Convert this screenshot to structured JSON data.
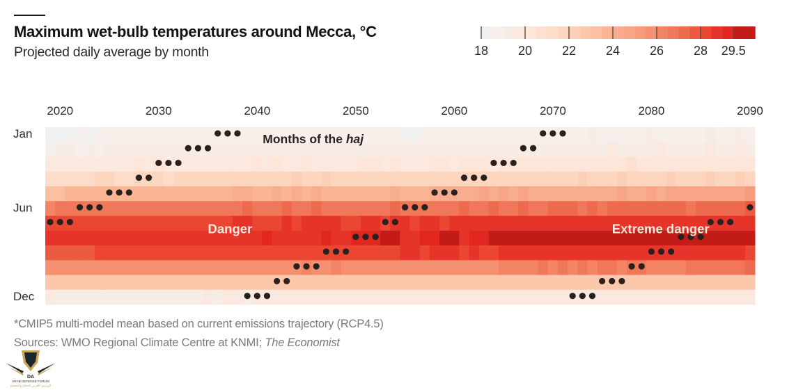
{
  "header": {
    "title": "Maximum wet-bulb temperatures around Mecca, °C",
    "subtitle": "Projected daily average by month"
  },
  "footer": {
    "note": "*CMIP5 multi-model mean based on current emissions trajectory (RCP4.5)",
    "sources_prefix": "Sources: WMO Regional Climate Centre at KNMI; ",
    "sources_italic": "The Economist"
  },
  "watermark": {
    "initials": "DA",
    "name": "ARAB DEFENSE FORUM",
    "arabic": "المنتدى العربي للدفاع والتسليح"
  },
  "chart_data": {
    "type": "heatmap",
    "title": "Maximum wet-bulb temperatures around Mecca, °C",
    "subtitle": "Projected daily average by month",
    "x_start_year": 2019,
    "x_end_year": 2090,
    "x_tick_labels": [
      "2020",
      "2030",
      "2040",
      "2050",
      "2060",
      "2070",
      "2080",
      "2090"
    ],
    "x_tick_years": [
      2020,
      2030,
      2040,
      2050,
      2060,
      2070,
      2080,
      2090
    ],
    "months": [
      "Jan",
      "Feb",
      "Mar",
      "Apr",
      "May",
      "Jun",
      "Jul",
      "Aug",
      "Sep",
      "Oct",
      "Nov",
      "Dec"
    ],
    "y_tick_labels": [
      {
        "month_index": 0,
        "label": "Jan"
      },
      {
        "month_index": 5,
        "label": "Jun"
      },
      {
        "month_index": 11,
        "label": "Dec"
      }
    ],
    "color_scale": {
      "min": 18,
      "max": 29.5,
      "step": 0.5,
      "tick_labels": [
        "18",
        "20",
        "22",
        "24",
        "26",
        "28",
        "29.5"
      ],
      "tick_values": [
        18,
        20,
        22,
        24,
        26,
        28,
        29.5
      ],
      "colors": [
        "#f0f0f0",
        "#f6efeb",
        "#f8ede6",
        "#fbe8de",
        "#fde5d8",
        "#fde0d0",
        "#fddcc9",
        "#fdd6c0",
        "#fcd0b6",
        "#fcc8ab",
        "#fbc0a0",
        "#fab594",
        "#f8ad8e",
        "#f8a486",
        "#f69b7c",
        "#f59070",
        "#f38565",
        "#f0775a",
        "#ee6a4e",
        "#ec5a42",
        "#ea4632",
        "#e6342a",
        "#e22620",
        "#c31b18"
      ]
    },
    "values": [
      [
        18,
        18,
        18,
        18.5,
        18,
        18.5,
        18.5,
        18.5,
        18.5,
        18.5,
        18.5,
        18.5,
        18.5,
        18.5,
        18.5,
        18.5,
        18.5,
        18.5,
        18.5,
        18.5,
        18.5,
        18.5,
        18.5,
        18.5,
        18.5,
        18.5,
        18.5,
        18.5,
        18.5,
        18.5,
        18.5,
        18.5,
        18.5,
        18.5,
        18.5,
        18.5,
        18,
        18,
        18.5,
        18.5,
        18.5,
        18.5,
        18.5,
        18.5,
        18.5,
        18.5,
        18.5,
        18.5,
        18.5,
        18.5,
        18.5,
        18.5,
        18.5,
        18.5,
        18.5,
        19,
        18.5,
        18.5,
        18.5,
        18.5,
        18.5,
        19,
        18.5,
        18.5,
        18.5,
        18.5,
        18.5,
        19,
        18.5,
        18.5,
        19,
        18.5
      ],
      [
        18.5,
        19,
        19,
        18.5,
        19,
        18.5,
        19,
        19,
        19,
        19,
        19,
        19,
        19,
        19,
        19,
        19,
        19,
        19,
        19,
        19,
        19,
        19,
        19,
        19,
        19,
        19,
        19,
        19,
        19,
        19,
        19,
        19,
        19,
        19,
        19,
        19,
        19,
        19,
        19,
        19,
        19,
        19,
        19,
        19,
        19,
        19,
        19,
        19,
        19,
        19,
        19,
        19,
        19,
        19,
        19,
        19,
        19,
        19.5,
        19,
        19,
        19,
        19,
        19.5,
        19,
        19,
        19,
        19,
        19.5,
        19,
        19,
        19.5,
        19
      ],
      [
        19.5,
        19.5,
        19.5,
        19.5,
        19.5,
        19.5,
        19.5,
        19.5,
        19.5,
        20,
        19.5,
        20,
        19.5,
        19.5,
        19.5,
        19.5,
        19.5,
        19.5,
        19.5,
        19.5,
        19.5,
        20,
        19.5,
        20,
        19.5,
        19.5,
        20,
        19.5,
        19.5,
        19.5,
        19.5,
        19.5,
        20,
        20,
        19.5,
        20,
        19.5,
        19.5,
        19.5,
        20,
        20,
        19.5,
        20,
        20,
        20,
        19.5,
        20,
        20,
        20,
        20,
        20,
        20,
        20,
        20,
        20,
        20,
        20,
        20,
        20,
        20.5,
        20,
        20,
        20,
        20,
        20,
        20,
        20,
        20,
        20,
        20,
        20,
        20
      ],
      [
        21,
        21,
        21,
        21,
        21,
        21.5,
        21.5,
        21,
        21,
        21.5,
        21.5,
        21.5,
        21,
        21.5,
        21.5,
        21.5,
        21.5,
        21.5,
        21.5,
        21.5,
        21.5,
        21.5,
        21.5,
        21.5,
        21.5,
        22,
        21.5,
        21.5,
        22,
        21.5,
        21.5,
        21.5,
        21.5,
        21.5,
        21.5,
        21.5,
        21.5,
        21.5,
        21.5,
        21.5,
        21.5,
        21.5,
        21.5,
        21.5,
        21.5,
        21.5,
        21.5,
        21.5,
        21.5,
        21.5,
        21.5,
        21.5,
        21.5,
        21.5,
        22,
        21.5,
        21.5,
        21.5,
        22,
        21.5,
        21.5,
        21.5,
        21.5,
        22,
        21.5,
        21.5,
        21.5,
        22,
        21.5,
        21.5,
        22,
        21.5
      ],
      [
        23,
        23,
        23.5,
        23.5,
        23.5,
        23.5,
        23.5,
        23.5,
        23.5,
        23.5,
        23.5,
        23.5,
        23.5,
        23.5,
        23.5,
        23.5,
        23.5,
        23.5,
        23.5,
        24,
        24,
        23.5,
        23.5,
        24,
        23.5,
        24,
        23.5,
        24,
        23.5,
        23.5,
        23.5,
        23.5,
        23.5,
        23.5,
        23.5,
        24,
        23.5,
        23.5,
        23.5,
        24,
        24,
        24,
        24,
        24,
        24.5,
        24,
        24.5,
        24,
        24.5,
        24,
        24,
        24,
        24,
        24,
        24,
        24,
        24,
        24,
        24.5,
        24,
        24,
        24.5,
        24,
        24.5,
        24.5,
        24.5,
        24.5,
        24.5,
        24.5,
        24.5,
        24.5,
        25
      ],
      [
        26,
        26.5,
        26.5,
        26.5,
        26.5,
        26.5,
        26.5,
        26.5,
        26.5,
        26.5,
        26.5,
        26.5,
        26.5,
        26.5,
        26.5,
        26.5,
        26.5,
        26.5,
        26.5,
        26.5,
        27,
        26.5,
        26.5,
        26.5,
        27,
        26.5,
        26.5,
        27,
        26.5,
        26.5,
        26.5,
        26.5,
        26.5,
        26.5,
        26.5,
        27,
        26.5,
        26.5,
        26.5,
        26.5,
        26.5,
        26.5,
        27,
        26.5,
        26.5,
        27,
        26.5,
        26.5,
        27,
        26.5,
        26.5,
        27,
        27,
        27,
        26.5,
        27,
        26.5,
        27,
        27,
        27,
        27,
        27,
        27,
        27,
        27,
        26.5,
        27,
        27,
        27,
        27,
        27,
        27.5
      ],
      [
        28,
        28,
        28,
        28,
        28,
        28,
        28,
        28,
        28,
        28,
        28,
        28,
        28,
        28,
        28,
        28,
        28,
        28,
        28,
        28.5,
        28.5,
        28,
        28,
        28,
        28.5,
        28,
        28.5,
        28.5,
        28.5,
        28.5,
        28,
        28,
        28.5,
        28.5,
        28,
        28.5,
        28.5,
        28,
        28.5,
        28.5,
        28,
        28.5,
        28.5,
        28.5,
        28.5,
        28.5,
        28.5,
        28.5,
        28.5,
        28.5,
        28.5,
        28.5,
        28.5,
        28.5,
        28.5,
        28.5,
        28.5,
        28.5,
        28.5,
        28.5,
        28.5,
        28.5,
        28.5,
        28.5,
        28.5,
        28.5,
        28.5,
        28.5,
        28.5,
        28.5,
        28.5,
        28.5
      ],
      [
        28.5,
        28.5,
        28.5,
        28.5,
        28.5,
        28.5,
        28.5,
        28.5,
        28.5,
        28.5,
        28.5,
        28.5,
        28.5,
        28.5,
        28.5,
        28.5,
        28.5,
        28.5,
        28.5,
        28.5,
        28.5,
        28.5,
        29,
        28.5,
        28.5,
        28.5,
        28.5,
        28.5,
        29,
        28.5,
        28.5,
        29,
        29,
        29,
        29.5,
        29.5,
        28.5,
        28.5,
        29,
        29,
        29.5,
        29.5,
        28.5,
        29,
        29,
        29.5,
        29.5,
        29.5,
        29.5,
        29.5,
        29.5,
        29.5,
        29.5,
        29.5,
        29.5,
        29.5,
        29.5,
        29.5,
        29.5,
        29.5,
        29.5,
        29.5,
        29.5,
        29.5,
        29.5,
        29.5,
        29.5,
        29.5,
        29.5,
        29.5,
        29.5,
        29.5
      ],
      [
        27.5,
        27.5,
        27.5,
        27.5,
        27.5,
        28,
        28,
        28,
        28,
        28,
        28,
        28,
        28,
        28,
        28,
        28,
        28,
        28,
        28,
        28,
        28,
        28,
        28,
        28,
        28,
        28,
        28,
        28,
        28,
        28,
        28,
        28,
        28,
        28,
        28,
        28,
        28.5,
        28.5,
        28,
        28.5,
        28.5,
        28.5,
        28,
        28.5,
        28,
        28,
        28.5,
        28.5,
        28.5,
        28.5,
        28.5,
        28.5,
        28.5,
        28.5,
        28.5,
        28.5,
        28.5,
        28.5,
        28.5,
        28.5,
        28.5,
        28.5,
        28.5,
        28.5,
        28.5,
        28.5,
        28.5,
        28.5,
        28.5,
        28.5,
        28.5,
        28
      ],
      [
        25.5,
        25.5,
        25.5,
        25.5,
        25.5,
        25.5,
        25.5,
        25.5,
        25.5,
        25.5,
        25.5,
        25.5,
        25.5,
        25.5,
        25.5,
        25.5,
        25.5,
        25.5,
        25.5,
        25.5,
        25.5,
        25.5,
        25.5,
        25.5,
        25.5,
        25.5,
        26,
        25.5,
        25.5,
        26,
        25.5,
        25.5,
        25.5,
        25.5,
        25.5,
        25.5,
        25.5,
        25.5,
        25.5,
        25.5,
        25.5,
        25.5,
        25.5,
        25.5,
        25.5,
        25.5,
        26,
        26,
        26,
        26,
        26.5,
        26,
        26.5,
        26,
        26.5,
        26,
        26.5,
        26.5,
        26,
        26.5,
        26.5,
        26,
        26,
        26,
        26,
        26.5,
        26.5,
        26.5,
        26.5,
        26.5,
        26.5,
        27
      ],
      [
        22.5,
        22.5,
        22.5,
        22.5,
        22.5,
        22.5,
        22.5,
        22.5,
        22.5,
        22.5,
        22.5,
        22.5,
        22.5,
        22.5,
        22.5,
        22.5,
        22.5,
        22.5,
        22.5,
        22.5,
        22.5,
        22.5,
        22.5,
        22.5,
        22.5,
        22.5,
        22.5,
        22.5,
        22.5,
        22.5,
        22.5,
        22.5,
        22.5,
        22.5,
        22.5,
        22.5,
        22.5,
        22.5,
        22.5,
        22.5,
        22.5,
        22.5,
        22.5,
        22.5,
        22.5,
        22.5,
        22.5,
        22.5,
        22.5,
        22.5,
        22.5,
        22.5,
        22.5,
        22.5,
        22.5,
        22.5,
        22.5,
        22.5,
        22.5,
        22.5,
        22.5,
        22.5,
        22.5,
        22.5,
        22.5,
        22.5,
        22.5,
        22.5,
        22.5,
        22.5,
        22.5,
        22.5
      ],
      [
        19.5,
        19,
        19,
        19,
        19,
        19,
        19,
        19,
        19,
        19,
        19,
        19,
        19,
        19,
        19,
        19,
        19.5,
        19,
        19.5,
        19.5,
        19,
        19.5,
        19.5,
        19.5,
        19.5,
        19.5,
        19.5,
        19.5,
        19.5,
        19.5,
        19.5,
        19.5,
        19.5,
        19.5,
        19.5,
        19.5,
        19.5,
        19.5,
        19.5,
        19.5,
        19.5,
        19.5,
        19.5,
        19.5,
        19.5,
        19.5,
        19.5,
        19.5,
        19.5,
        19.5,
        19.5,
        19.5,
        19.5,
        19.5,
        19.5,
        19.5,
        19.5,
        19.5,
        19.5,
        19.5,
        19.5,
        19.5,
        19.5,
        19.5,
        19.5,
        19.5,
        19.5,
        19.5,
        19.5,
        19.5,
        19.5,
        19.5
      ]
    ],
    "haj_markers": {
      "description": "Dots mark the months in which the haj falls each year",
      "points": [
        {
          "year": 2019,
          "month": "Jul"
        },
        {
          "year": 2020,
          "month": "Jul"
        },
        {
          "year": 2021,
          "month": "Jul"
        },
        {
          "year": 2022,
          "month": "Jun"
        },
        {
          "year": 2023,
          "month": "Jun"
        },
        {
          "year": 2024,
          "month": "Jun"
        },
        {
          "year": 2025,
          "month": "May"
        },
        {
          "year": 2026,
          "month": "May"
        },
        {
          "year": 2027,
          "month": "May"
        },
        {
          "year": 2028,
          "month": "Apr"
        },
        {
          "year": 2029,
          "month": "Apr"
        },
        {
          "year": 2030,
          "month": "Mar"
        },
        {
          "year": 2031,
          "month": "Mar"
        },
        {
          "year": 2032,
          "month": "Mar"
        },
        {
          "year": 2033,
          "month": "Feb"
        },
        {
          "year": 2034,
          "month": "Feb"
        },
        {
          "year": 2035,
          "month": "Feb"
        },
        {
          "year": 2036,
          "month": "Jan"
        },
        {
          "year": 2037,
          "month": "Jan"
        },
        {
          "year": 2038,
          "month": "Jan"
        },
        {
          "year": 2039,
          "month": "Dec"
        },
        {
          "year": 2040,
          "month": "Dec"
        },
        {
          "year": 2041,
          "month": "Dec"
        },
        {
          "year": 2042,
          "month": "Nov"
        },
        {
          "year": 2043,
          "month": "Nov"
        },
        {
          "year": 2044,
          "month": "Oct"
        },
        {
          "year": 2045,
          "month": "Oct"
        },
        {
          "year": 2046,
          "month": "Oct"
        },
        {
          "year": 2047,
          "month": "Sep"
        },
        {
          "year": 2048,
          "month": "Sep"
        },
        {
          "year": 2049,
          "month": "Sep"
        },
        {
          "year": 2050,
          "month": "Aug"
        },
        {
          "year": 2051,
          "month": "Aug"
        },
        {
          "year": 2052,
          "month": "Aug"
        },
        {
          "year": 2053,
          "month": "Jul"
        },
        {
          "year": 2054,
          "month": "Jul"
        },
        {
          "year": 2055,
          "month": "Jun"
        },
        {
          "year": 2056,
          "month": "Jun"
        },
        {
          "year": 2057,
          "month": "Jun"
        },
        {
          "year": 2058,
          "month": "May"
        },
        {
          "year": 2059,
          "month": "May"
        },
        {
          "year": 2060,
          "month": "May"
        },
        {
          "year": 2061,
          "month": "Apr"
        },
        {
          "year": 2062,
          "month": "Apr"
        },
        {
          "year": 2063,
          "month": "Apr"
        },
        {
          "year": 2064,
          "month": "Mar"
        },
        {
          "year": 2065,
          "month": "Mar"
        },
        {
          "year": 2066,
          "month": "Mar"
        },
        {
          "year": 2067,
          "month": "Feb"
        },
        {
          "year": 2068,
          "month": "Feb"
        },
        {
          "year": 2069,
          "month": "Jan"
        },
        {
          "year": 2070,
          "month": "Jan"
        },
        {
          "year": 2071,
          "month": "Jan"
        },
        {
          "year": 2072,
          "month": "Dec"
        },
        {
          "year": 2073,
          "month": "Dec"
        },
        {
          "year": 2074,
          "month": "Dec"
        },
        {
          "year": 2075,
          "month": "Nov"
        },
        {
          "year": 2076,
          "month": "Nov"
        },
        {
          "year": 2077,
          "month": "Nov"
        },
        {
          "year": 2078,
          "month": "Oct"
        },
        {
          "year": 2079,
          "month": "Oct"
        },
        {
          "year": 2080,
          "month": "Sep"
        },
        {
          "year": 2081,
          "month": "Sep"
        },
        {
          "year": 2082,
          "month": "Sep"
        },
        {
          "year": 2083,
          "month": "Aug"
        },
        {
          "year": 2084,
          "month": "Aug"
        },
        {
          "year": 2085,
          "month": "Aug"
        },
        {
          "year": 2086,
          "month": "Jul"
        },
        {
          "year": 2087,
          "month": "Jul"
        },
        {
          "year": 2088,
          "month": "Jul"
        },
        {
          "year": 2090,
          "month": "Jun"
        }
      ]
    },
    "annotations": [
      {
        "text_prefix": "Months of the ",
        "text_italic": "haj",
        "near_year": 2040,
        "month": "Jan",
        "style": "dark"
      },
      {
        "text": "Danger",
        "near_year": 2035,
        "month": "Jul",
        "style": "light"
      },
      {
        "text": "Extreme danger",
        "near_year": 2076,
        "month": "Jul",
        "style": "light"
      }
    ]
  }
}
